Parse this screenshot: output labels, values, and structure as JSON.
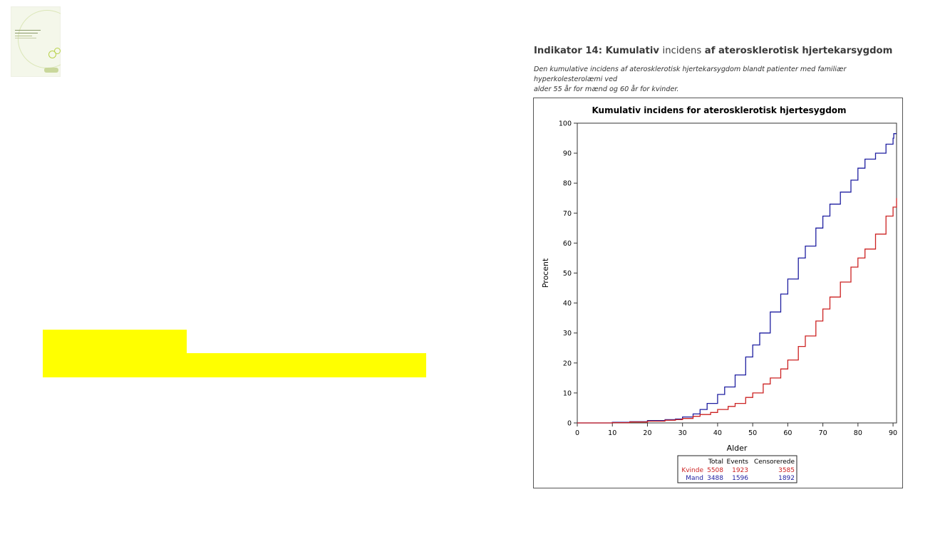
{
  "heading": {
    "title_bold": "Indikator 14: Kumulativ",
    "title_light": "incidens",
    "title_rest": "af aterosklerotisk hjertekarsygdom",
    "subtitle_line1": "Den kumulative incidens af aterosklerotisk hjertekarsygdom blandt patienter med familiær hyperkolesterolæmi ved",
    "subtitle_line2": "alder 55 år for mænd og 60 år for kvinder."
  },
  "colors": {
    "kvinde": "#cc2222",
    "mand": "#1e1ea0",
    "highlight": "#ffff00"
  },
  "chart_data": {
    "type": "line",
    "step": true,
    "title": "Kumulativ incidens for aterosklerotisk hjertesygdom",
    "xlabel": "Alder",
    "ylabel": "Procent",
    "xlim": [
      0,
      91
    ],
    "ylim": [
      0,
      100
    ],
    "xticks": [
      0,
      10,
      20,
      30,
      40,
      50,
      60,
      70,
      80,
      90
    ],
    "yticks": [
      0,
      10,
      20,
      30,
      40,
      50,
      60,
      70,
      80,
      90,
      100
    ],
    "series": [
      {
        "name": "Mand",
        "x": [
          0,
          10,
          15,
          20,
          25,
          28,
          30,
          33,
          35,
          37,
          40,
          42,
          45,
          48,
          50,
          52,
          55,
          58,
          60,
          63,
          65,
          68,
          70,
          72,
          75,
          78,
          80,
          82,
          85,
          88,
          90,
          90.2,
          91
        ],
        "y": [
          0,
          0.2,
          0.4,
          0.8,
          1.1,
          1.3,
          2.0,
          3.0,
          4.5,
          6.5,
          9.5,
          12,
          16,
          22,
          26,
          30,
          37,
          43,
          48,
          55,
          59,
          65,
          69,
          73,
          77,
          81,
          85,
          88,
          90,
          93,
          95,
          96.5,
          96.5
        ]
      },
      {
        "name": "Kvinde",
        "x": [
          0,
          10,
          15,
          20,
          25,
          28,
          30,
          33,
          35,
          38,
          40,
          43,
          45,
          48,
          50,
          53,
          55,
          58,
          60,
          63,
          65,
          68,
          70,
          72,
          75,
          78,
          80,
          82,
          85,
          88,
          90,
          91
        ],
        "y": [
          0,
          0.1,
          0.3,
          0.6,
          0.9,
          1.1,
          1.5,
          2.2,
          2.8,
          3.5,
          4.5,
          5.5,
          6.5,
          8.5,
          10,
          13,
          15,
          18,
          21,
          25.5,
          29,
          34,
          38,
          42,
          47,
          52,
          55,
          58,
          63,
          69,
          72,
          75
        ]
      }
    ],
    "table": {
      "headers": [
        "",
        "Total",
        "Events",
        "Censorerede"
      ],
      "rows": [
        {
          "label": "Kvinde",
          "total": "5508",
          "events": "1923",
          "censored": "3585"
        },
        {
          "label": "Mand",
          "total": "3488",
          "events": "1596",
          "censored": "1892"
        }
      ]
    }
  }
}
